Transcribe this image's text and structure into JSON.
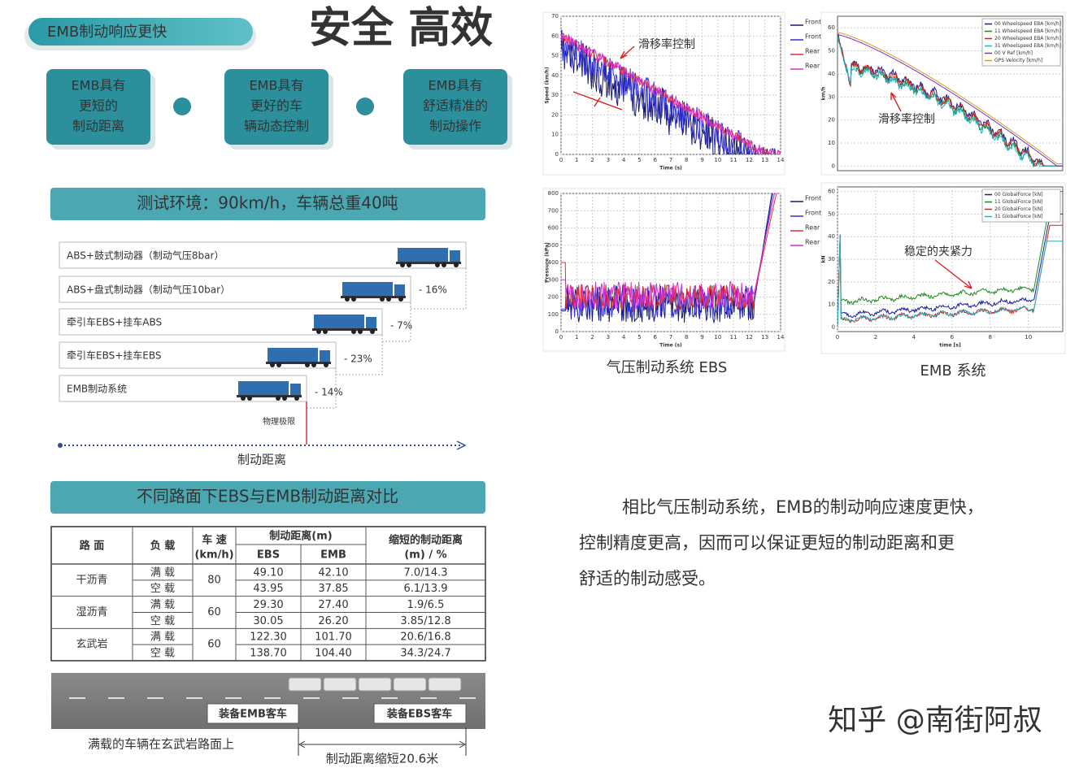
{
  "header": {
    "tag": "EMB制动响应更快",
    "title": "安全 高效"
  },
  "advantages": [
    [
      "EMB具有",
      "更短的",
      "制动距离"
    ],
    [
      "EMB具有",
      "更好的车",
      "辆动态控制"
    ],
    [
      "EMB具有",
      "舒适精准的",
      "制动操作"
    ]
  ],
  "test": {
    "banner": "测试环境：90km/h，车辆总重40吨",
    "rows": [
      {
        "label": "ABS+鼓式制动器（制动气压8bar）"
      },
      {
        "label": "ABS+盘式制动器（制动气压10bar）",
        "reduction": "- 16%"
      },
      {
        "label": "牵引车EBS+挂车ABS",
        "reduction": "- 7%"
      },
      {
        "label": "牵引车EBS+挂车EBS",
        "reduction": "- 23%"
      },
      {
        "label": "EMB制动系统",
        "reduction": "- 14%"
      }
    ],
    "limit": "物理极限",
    "axis": "制动距离"
  },
  "comparison": {
    "banner": "不同路面下EBS与EMB制动距离对比",
    "header": {
      "road": "路 面",
      "load": "负 载",
      "speed": [
        "车 速",
        "(km/h)"
      ],
      "distance": "制动距离(m)",
      "ebs": "EBS",
      "emb": "EMB",
      "saving": [
        "缩短的制动距离",
        "(m) / %"
      ]
    },
    "groups": [
      {
        "road": "干沥青",
        "speed": "80",
        "rows": [
          [
            "满 载",
            "49.10",
            "42.10",
            "7.0/14.3"
          ],
          [
            "空 载",
            "43.95",
            "37.85",
            "6.1/13.9"
          ]
        ]
      },
      {
        "road": "湿沥青",
        "speed": "60",
        "rows": [
          [
            "满 载",
            "29.30",
            "27.40",
            "1.9/6.5"
          ],
          [
            "空 载",
            "30.05",
            "26.20",
            "3.85/12.8"
          ]
        ]
      },
      {
        "road": "玄武岩",
        "speed": "60",
        "rows": [
          [
            "满 载",
            "122.30",
            "101.70",
            "20.6/16.8"
          ],
          [
            "空 载",
            "138.70",
            "104.40",
            "34.3/24.7"
          ]
        ]
      }
    ]
  },
  "road_scene": {
    "emb": "装备EMB客车",
    "ebs": "装备EBS客车",
    "note": "满载的车辆在玄武岩路面上",
    "gain": "制动距离缩短20.6米"
  },
  "charts": {
    "ebs_speed": {
      "xlim": [
        0,
        14
      ],
      "ylim": [
        0,
        70
      ],
      "xticks": [
        0,
        1,
        2,
        3,
        4,
        5,
        6,
        7,
        8,
        9,
        10,
        11,
        12,
        13,
        14
      ],
      "yticks": [
        0,
        10,
        20,
        30,
        40,
        50,
        60,
        70
      ],
      "xlabel": "Time (s)",
      "ylabel": "Speed (km/h)",
      "legend": [
        "Front",
        "Front",
        "Rear",
        "Rear"
      ],
      "annotation": "滑移率控制"
    },
    "emb_speed": {
      "xlim": [
        0,
        11.8
      ],
      "ylim": [
        -2,
        65
      ],
      "yticks": [
        0,
        10,
        20,
        30,
        40,
        50,
        60
      ],
      "ylabel": "km/h",
      "legend": [
        "00 Wheelspeed EBA [km/h]",
        "11 Wheelspeed EBA [km/h]",
        "20 Wheelspeed EBA [km/h]",
        "31 Wheelspeed EBA [km/h]",
        "00 V Ref [km/h]",
        "GPS Velocity [km/h]"
      ],
      "annotation": "滑移率控制"
    },
    "ebs_pressure": {
      "xlim": [
        0,
        14
      ],
      "ylim": [
        0,
        800
      ],
      "xticks": [
        0,
        1,
        2,
        3,
        4,
        5,
        6,
        7,
        8,
        9,
        10,
        11,
        12,
        13,
        14
      ],
      "yticks": [
        0,
        100,
        200,
        300,
        400,
        500,
        600,
        700,
        800
      ],
      "xlabel": "Time (s)",
      "ylabel": "Pressure (kPa)",
      "legend": [
        "Front",
        "Front",
        "Rear",
        "Rear"
      ]
    },
    "emb_force": {
      "xlim": [
        0,
        11.8
      ],
      "ylim": [
        -2,
        62
      ],
      "xticks": [
        0,
        2,
        4,
        6,
        8,
        10
      ],
      "yticks": [
        0,
        10,
        20,
        30,
        40,
        50,
        60
      ],
      "xlabel": "time [s]",
      "ylabel": "kN",
      "legend": [
        "00 GlobalForce [kN]",
        "11 GlobalForce [kN]",
        "20 GlobalForce [kN]",
        "31 GlobalForce [kN]"
      ],
      "annotation": "稳定的夹紧力"
    }
  },
  "captions": {
    "ebs": "气压制动系统 EBS",
    "emb": "EMB 系统"
  },
  "paragraph": [
    "相比气压制动系统，EMB的制动响应速度更快，",
    "控制精度更高，因而可以保证更短的制动距离和更",
    "舒适的制动感受。"
  ],
  "watermark": "知乎 @南街阿叔"
}
